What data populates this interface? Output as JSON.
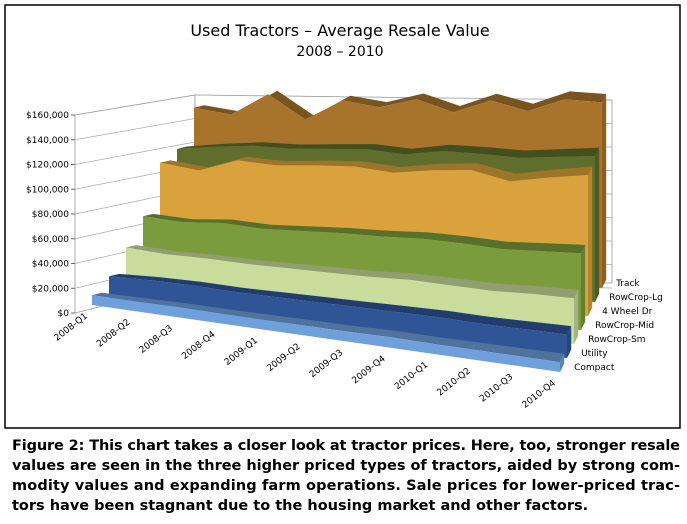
{
  "chart_data": {
    "type": "area3d",
    "title": "Used Tractors – Average Resale Value",
    "subtitle": "2008 – 2010",
    "categories": [
      "2008-Q1",
      "2008-Q2",
      "2008-Q3",
      "2008-Q4",
      "2009-Q1",
      "2009-Q2",
      "2009-Q3",
      "2009-Q4",
      "2010-Q1",
      "2010-Q2",
      "2010-Q3",
      "2010-Q4"
    ],
    "series": [
      {
        "name": "Track",
        "color": "#a8742c",
        "values": [
          140000,
          135000,
          152000,
          132000,
          148000,
          143000,
          150000,
          140000,
          150000,
          142000,
          152000,
          150000
        ]
      },
      {
        "name": "RowCrop-Lg",
        "color": "#5f6e2c",
        "values": [
          110000,
          113000,
          115000,
          114000,
          115000,
          116000,
          113000,
          117000,
          116000,
          114000,
          116000,
          118000
        ]
      },
      {
        "name": "4 Wheel Dr",
        "color": "#d9a23c",
        "values": [
          102000,
          98000,
          108000,
          106000,
          108000,
          109000,
          106000,
          110000,
          112000,
          105000,
          110000,
          114000
        ]
      },
      {
        "name": "RowCrop-Mid",
        "color": "#7a9c3c",
        "values": [
          62000,
          60000,
          62000,
          60000,
          61000,
          62000,
          62000,
          63000,
          62000,
          60000,
          61000,
          62000
        ]
      },
      {
        "name": "RowCrop-Sm",
        "color": "#c8dd9c",
        "values": [
          40000,
          38000,
          38000,
          37000,
          37000,
          37000,
          37000,
          38000,
          37000,
          36000,
          37000,
          37000
        ]
      },
      {
        "name": "Utility",
        "color": "#2f5597",
        "values": [
          20000,
          21000,
          21000,
          20000,
          20000,
          20000,
          20000,
          20000,
          20000,
          19000,
          19000,
          19000
        ]
      },
      {
        "name": "Compact",
        "color": "#6fa0dc",
        "values": [
          8000,
          8000,
          8500,
          8000,
          8000,
          8000,
          8000,
          8500,
          8000,
          8000,
          8000,
          8000
        ]
      }
    ],
    "ylim": [
      0,
      160000
    ],
    "yticks": [
      {
        "value": 0,
        "label": "$0"
      },
      {
        "value": 20000,
        "label": "$20,000"
      },
      {
        "value": 40000,
        "label": "$40,000"
      },
      {
        "value": 60000,
        "label": "$60,000"
      },
      {
        "value": 80000,
        "label": "$80,000"
      },
      {
        "value": 100000,
        "label": "$100,000"
      },
      {
        "value": 120000,
        "label": "$120,000"
      },
      {
        "value": 140000,
        "label": "$140,000"
      },
      {
        "value": 160000,
        "label": "$160,000"
      }
    ],
    "grid": true,
    "caption": [
      "Figure 2: This chart takes a closer look at tractor prices. Here, too, stronger resale",
      "values are seen in the three higher priced types of tractors, aided by strong com-",
      "modity values and expanding farm operations. Sale prices for lower-priced trac-",
      "tors have been stagnant due to the housing market and other factors."
    ]
  }
}
